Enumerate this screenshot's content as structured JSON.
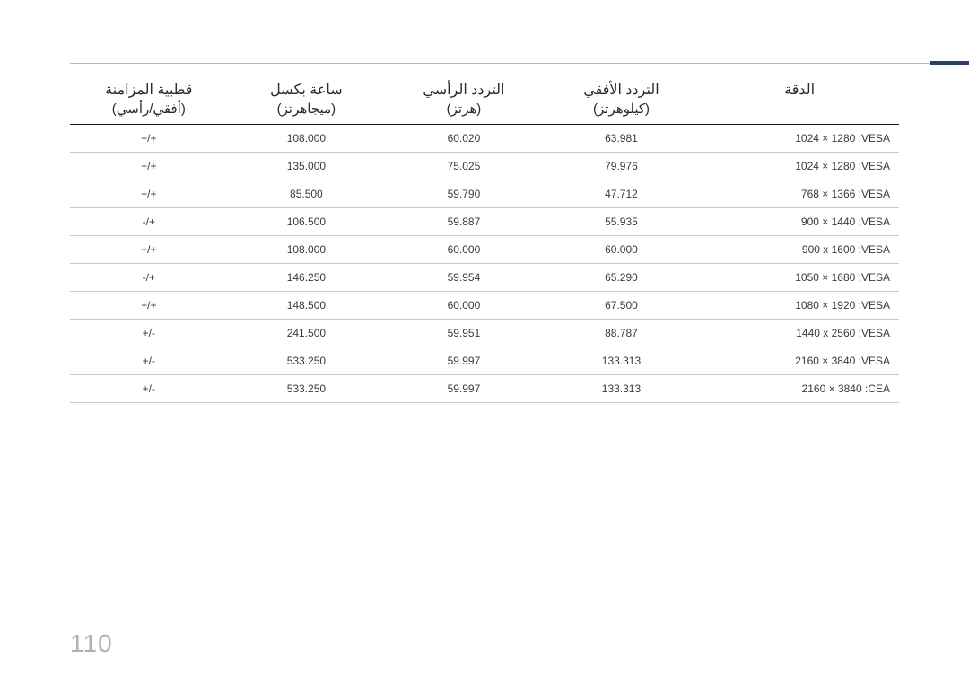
{
  "page_number": "110",
  "colors": {
    "rule": "#b8b8b8",
    "accent": "#2c3d66",
    "header_border": "#1a1a1a",
    "row_border": "#c9c9c9",
    "text": "#333333",
    "page_num": "#b0b0b0",
    "background": "#ffffff"
  },
  "table": {
    "columns": [
      {
        "key": "resolution",
        "header_main": "الدقة",
        "header_sub": ""
      },
      {
        "key": "hfreq",
        "header_main": "التردد الأفقي",
        "header_sub": "(كيلوهرتز)"
      },
      {
        "key": "vfreq",
        "header_main": "التردد الرأسي",
        "header_sub": "(هرتز)"
      },
      {
        "key": "pclk",
        "header_main": "ساعة بكسل",
        "header_sub": "(ميجاهرتز)"
      },
      {
        "key": "polarity",
        "header_main": "قطبية المزامنة",
        "header_sub": "(أفقي/رأسي)"
      }
    ],
    "rows": [
      {
        "resolution": "1024 × 1280 :VESA",
        "hfreq": "63.981",
        "vfreq": "60.020",
        "pclk": "108.000",
        "polarity": "+/+"
      },
      {
        "resolution": "1024 × 1280 :VESA",
        "hfreq": "79.976",
        "vfreq": "75.025",
        "pclk": "135.000",
        "polarity": "+/+"
      },
      {
        "resolution": "768 × 1366 :VESA",
        "hfreq": "47.712",
        "vfreq": "59.790",
        "pclk": "85.500",
        "polarity": "+/+"
      },
      {
        "resolution": "900 × 1440 :VESA",
        "hfreq": "55.935",
        "vfreq": "59.887",
        "pclk": "106.500",
        "polarity": "+/-"
      },
      {
        "resolution": "900 x 1600 :VESA",
        "hfreq": "60.000",
        "vfreq": "60.000",
        "pclk": "108.000",
        "polarity": "+/+"
      },
      {
        "resolution": "1050 × 1680 :VESA",
        "hfreq": "65.290",
        "vfreq": "59.954",
        "pclk": "146.250",
        "polarity": "+/-"
      },
      {
        "resolution": "1080 × 1920 :VESA",
        "hfreq": "67.500",
        "vfreq": "60.000",
        "pclk": "148.500",
        "polarity": "+/+"
      },
      {
        "resolution": "1440 x 2560 :VESA",
        "hfreq": "88.787",
        "vfreq": "59.951",
        "pclk": "241.500",
        "polarity": "-/+"
      },
      {
        "resolution": "2160 × 3840 :VESA",
        "hfreq": "133.313",
        "vfreq": "59.997",
        "pclk": "533.250",
        "polarity": "-/+"
      },
      {
        "resolution": "2160 × 3840 :CEA",
        "hfreq": "133.313",
        "vfreq": "59.997",
        "pclk": "533.250",
        "polarity": "-/+"
      }
    ]
  }
}
